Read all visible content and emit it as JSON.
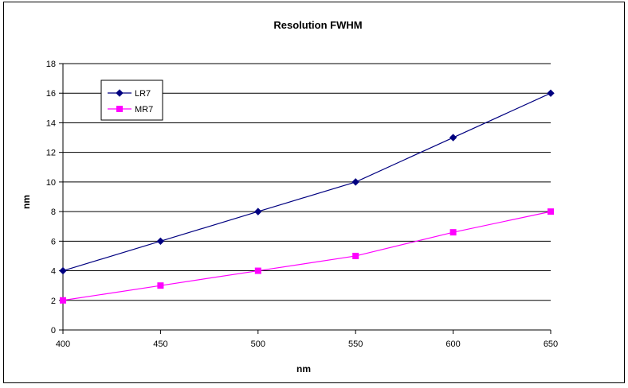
{
  "chart_data": {
    "type": "line",
    "title": "Resolution FWHM",
    "xlabel": "nm",
    "ylabel": "nm",
    "x": [
      400,
      450,
      500,
      550,
      600,
      650
    ],
    "xlim": [
      400,
      650
    ],
    "ylim": [
      0,
      18
    ],
    "x_ticks": [
      400,
      450,
      500,
      550,
      600,
      650
    ],
    "y_ticks": [
      0,
      2,
      4,
      6,
      8,
      10,
      12,
      14,
      16,
      18
    ],
    "grid": "horizontal",
    "legend_position": "top-left",
    "series": [
      {
        "name": "LR7",
        "values": [
          4,
          6,
          8,
          10,
          13,
          16
        ],
        "color": "#000080",
        "marker": "diamond"
      },
      {
        "name": "MR7",
        "values": [
          2,
          3,
          4,
          5,
          6.6,
          8
        ],
        "color": "#ff00ff",
        "marker": "square"
      }
    ]
  }
}
